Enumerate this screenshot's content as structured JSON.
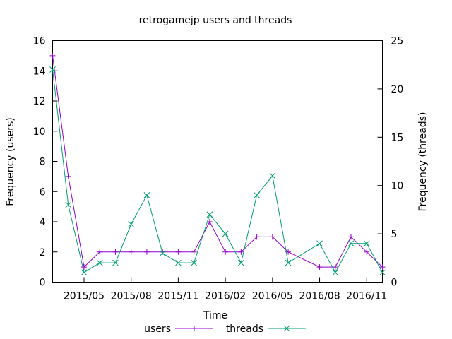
{
  "chart_data": {
    "type": "line",
    "title": "retrogamejp users and threads",
    "xlabel": "Time",
    "ylabel": "Frequency (users)",
    "y2label": "Frequency (threads)",
    "ylim": [
      0,
      16
    ],
    "y2lim": [
      0,
      25
    ],
    "yticks": [
      0,
      2,
      4,
      6,
      8,
      10,
      12,
      14,
      16
    ],
    "y2ticks": [
      0,
      5,
      10,
      15,
      20,
      25
    ],
    "x": [
      "2015-03",
      "2015-04",
      "2015-05",
      "2015-06",
      "2015-07",
      "2015-08",
      "2015-09",
      "2015-10",
      "2015-11",
      "2015-12",
      "2016-01",
      "2016-02",
      "2016-03",
      "2016-04",
      "2016-05",
      "2016-06",
      "2016-07",
      "2016-08",
      "2016-09",
      "2016-10",
      "2016-11",
      "2016-12"
    ],
    "xtick_labels": [
      "2015/05",
      "2015/08",
      "2015/11",
      "2016/02",
      "2016/05",
      "2016/08",
      "2016/11"
    ],
    "xtick_positions": [
      "2015-05",
      "2015-08",
      "2015-11",
      "2016-02",
      "2016-05",
      "2016-08",
      "2016-11"
    ],
    "grid": false,
    "legend_position": "bottom",
    "series": [
      {
        "name": "users",
        "axis": "left",
        "color": "#9400d3",
        "marker": "plus",
        "x": [
          "2015-03",
          "2015-04",
          "2015-05",
          "2015-06",
          "2015-07",
          "2015-08",
          "2015-09",
          "2015-10",
          "2015-11",
          "2015-12",
          "2016-01",
          "2016-02",
          "2016-03",
          "2016-04",
          "2016-05",
          "2016-06",
          "2016-08",
          "2016-09",
          "2016-10",
          "2016-11",
          "2016-12"
        ],
        "values": [
          15,
          7,
          1,
          2,
          2,
          2,
          2,
          2,
          2,
          2,
          4,
          2,
          2,
          3,
          3,
          2,
          1,
          1,
          3,
          2,
          1
        ]
      },
      {
        "name": "threads",
        "axis": "right",
        "color": "#009e73",
        "marker": "x",
        "x": [
          "2015-03",
          "2015-04",
          "2015-05",
          "2015-06",
          "2015-07",
          "2015-08",
          "2015-09",
          "2015-10",
          "2015-11",
          "2015-12",
          "2016-01",
          "2016-02",
          "2016-03",
          "2016-04",
          "2016-05",
          "2016-06",
          "2016-08",
          "2016-09",
          "2016-10",
          "2016-11",
          "2016-12"
        ],
        "values": [
          22,
          8,
          1,
          2,
          2,
          6,
          9,
          3,
          2,
          2,
          7,
          5,
          2,
          9,
          11,
          2,
          4,
          1,
          4,
          4,
          1
        ]
      }
    ]
  }
}
